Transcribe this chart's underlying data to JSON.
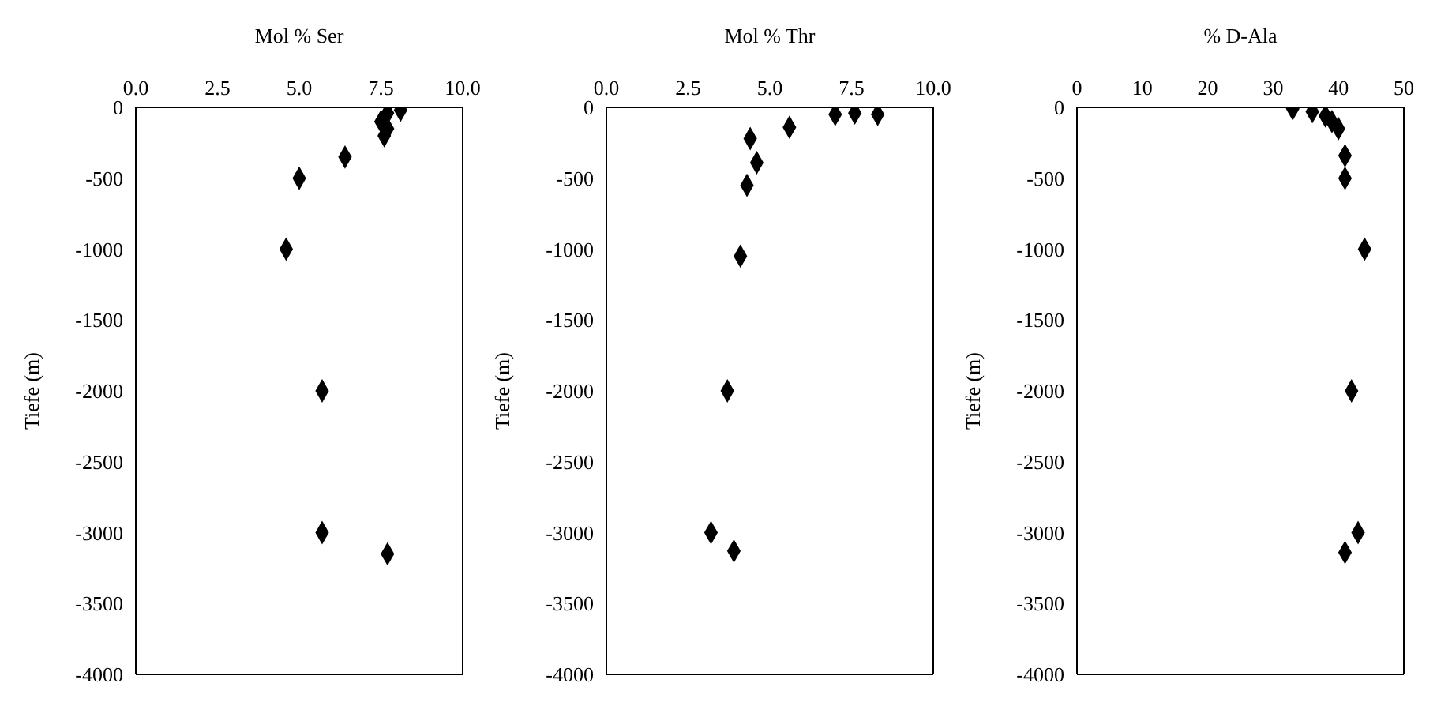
{
  "chart_data": [
    {
      "type": "scatter",
      "xlabel": "Mol % Ser",
      "ylabel": "Tiefe (m)",
      "marker": "diamond",
      "grid": false,
      "legend": false,
      "xlim": [
        0,
        10
      ],
      "xticks": [
        {
          "value": 0,
          "label": "0.0"
        },
        {
          "value": 2.5,
          "label": "2.5"
        },
        {
          "value": 5,
          "label": "5.0"
        },
        {
          "value": 7.5,
          "label": "7.5"
        },
        {
          "value": 10,
          "label": "10.0"
        }
      ],
      "ylim": [
        -4000,
        0
      ],
      "yticks": [
        0,
        -500,
        -1000,
        -1500,
        -2000,
        -2500,
        -3000,
        -3500,
        -4000
      ],
      "series": [
        {
          "color": "#000000",
          "x": [
            8.1,
            7.7,
            7.5,
            7.7,
            7.6,
            6.4,
            5.0,
            4.6,
            5.7,
            5.7,
            7.7
          ],
          "values": [
            -20,
            -40,
            -100,
            -150,
            -200,
            -350,
            -500,
            -1000,
            -2000,
            -3000,
            -3150
          ]
        }
      ]
    },
    {
      "type": "scatter",
      "xlabel": "Mol % Thr",
      "ylabel": "Tiefe (m)",
      "marker": "diamond",
      "grid": false,
      "legend": false,
      "xlim": [
        0,
        10
      ],
      "xticks": [
        {
          "value": 0,
          "label": "0.0"
        },
        {
          "value": 2.5,
          "label": "2.5"
        },
        {
          "value": 5,
          "label": "5.0"
        },
        {
          "value": 7.5,
          "label": "7.5"
        },
        {
          "value": 10,
          "label": "10.0"
        }
      ],
      "ylim": [
        -4000,
        0
      ],
      "yticks": [
        0,
        -500,
        -1000,
        -1500,
        -2000,
        -2500,
        -3000,
        -3500,
        -4000
      ],
      "series": [
        {
          "color": "#000000",
          "x": [
            7.0,
            7.6,
            8.3,
            5.6,
            4.4,
            4.6,
            4.3,
            4.1,
            3.7,
            3.2,
            3.9
          ],
          "values": [
            -50,
            -40,
            -50,
            -140,
            -220,
            -390,
            -550,
            -1050,
            -2000,
            -3000,
            -3130
          ]
        }
      ]
    },
    {
      "type": "scatter",
      "xlabel": "% D-Ala",
      "ylabel": "Tiefe (m)",
      "marker": "diamond",
      "grid": false,
      "legend": false,
      "xlim": [
        0,
        50
      ],
      "xticks": [
        0,
        10,
        20,
        30,
        40,
        50
      ],
      "ylim": [
        -4000,
        0
      ],
      "yticks": [
        0,
        -500,
        -1000,
        -1500,
        -2000,
        -2500,
        -3000,
        -3500,
        -4000
      ],
      "series": [
        {
          "color": "#000000",
          "x": [
            33,
            36,
            38,
            39,
            40,
            41,
            41,
            44,
            42,
            43,
            41
          ],
          "values": [
            -10,
            -30,
            -60,
            -100,
            -150,
            -340,
            -500,
            -1000,
            -2000,
            -3000,
            -3140
          ]
        }
      ]
    }
  ]
}
